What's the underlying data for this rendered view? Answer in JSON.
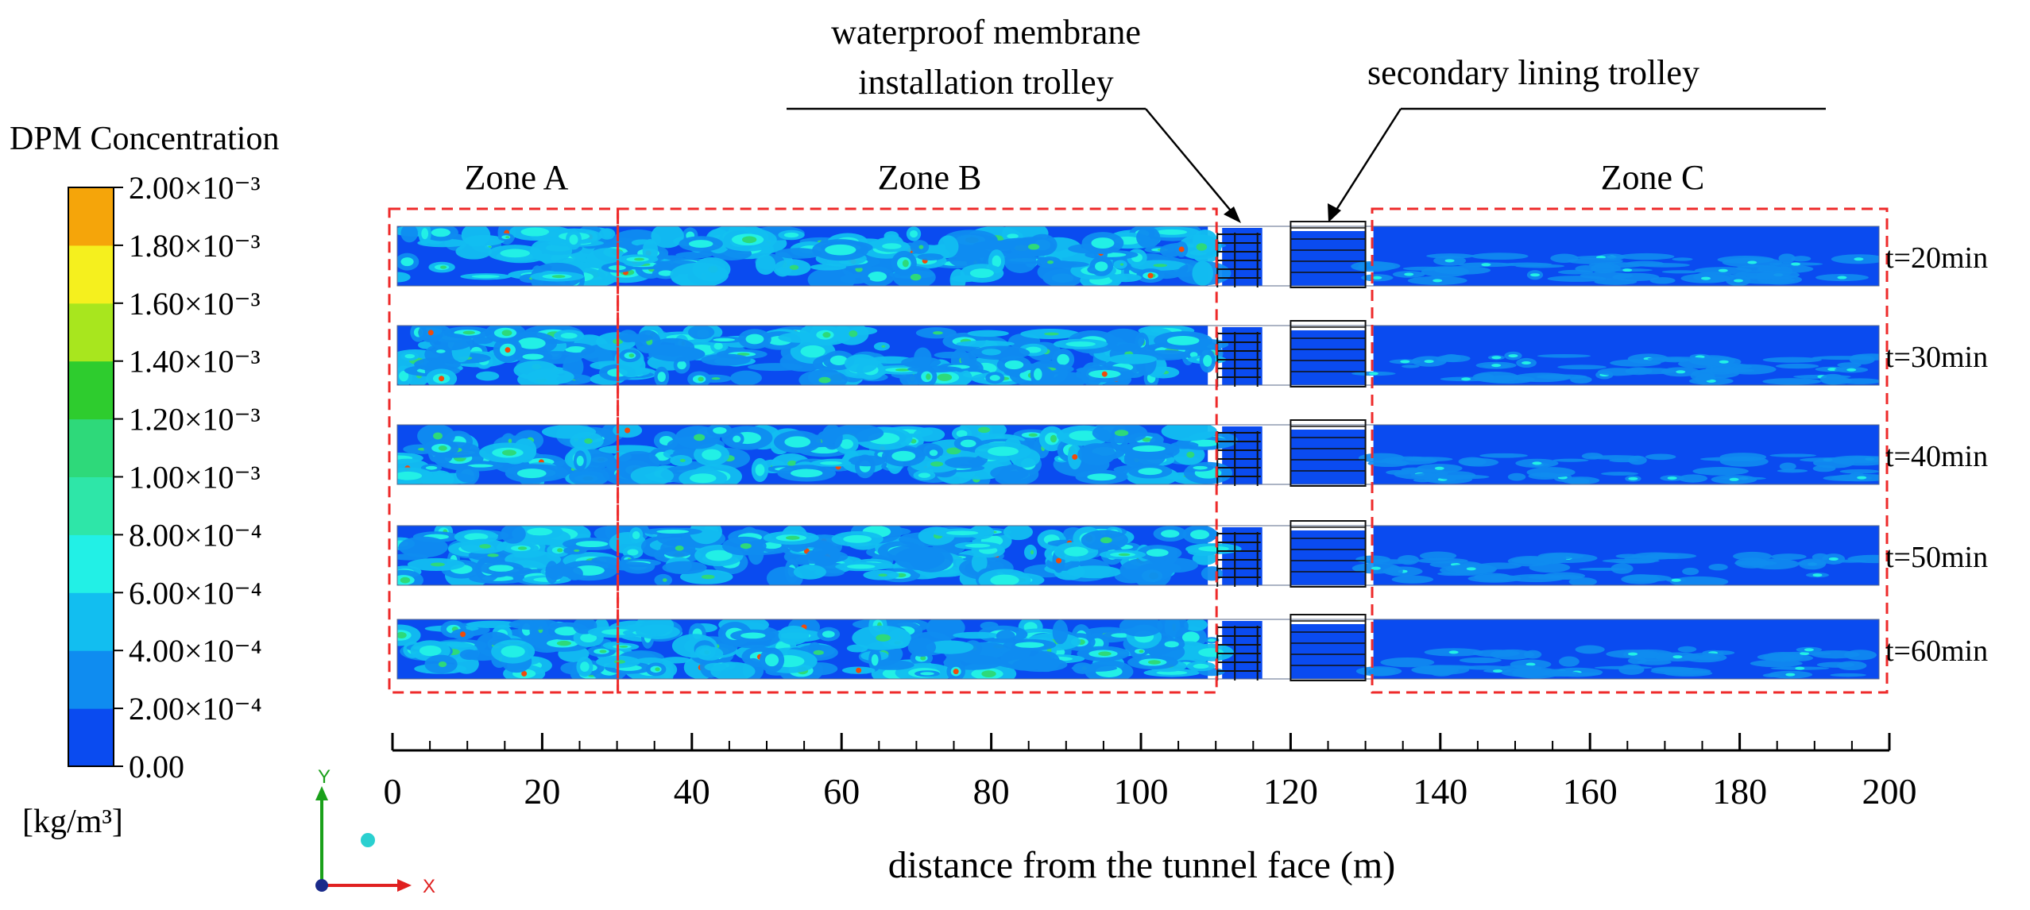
{
  "chart_data": {
    "type": "heatmap",
    "title": "",
    "xlabel": "distance from the tunnel face (m)",
    "ylabel": "",
    "xlim": [
      0,
      200
    ],
    "x_ticks": [
      0,
      20,
      40,
      60,
      80,
      100,
      120,
      140,
      160,
      180,
      200
    ],
    "x_tick_labels": [
      "0",
      "20",
      "40",
      "60",
      "80",
      "100",
      "120",
      "140",
      "160",
      "180",
      "200"
    ],
    "colorbar": {
      "title": "DPM Concentration",
      "unit": "[kg/m³]",
      "min": 0.0,
      "max": 0.002,
      "tick_labels": [
        "0.00",
        "2.00×10⁻⁴",
        "4.00×10⁻⁴",
        "6.00×10⁻⁴",
        "8.00×10⁻⁴",
        "1.00×10⁻³",
        "1.20×10⁻³",
        "1.40×10⁻³",
        "1.60×10⁻³",
        "1.80×10⁻³",
        "2.00×10⁻³"
      ],
      "colors": [
        "#0a4bf0",
        "#0f8cf0",
        "#12bef0",
        "#22f0e6",
        "#2ee6a8",
        "#2ed97a",
        "#2ecc2e",
        "#a8e61e",
        "#f5f01e",
        "#f5a50a",
        "#f04b0a"
      ]
    },
    "series": [
      {
        "name": "t=20min",
        "time_min": 20
      },
      {
        "name": "t=30min",
        "time_min": 30
      },
      {
        "name": "t=40min",
        "time_min": 40
      },
      {
        "name": "t=50min",
        "time_min": 50
      },
      {
        "name": "t=60min",
        "time_min": 60
      }
    ],
    "zones": [
      {
        "label": "Zone A",
        "x_start": 0,
        "x_end": 30
      },
      {
        "label": "Zone B",
        "x_start": 30,
        "x_end": 110
      },
      {
        "label": "Zone C",
        "x_start": 130,
        "x_end": 200
      }
    ],
    "equipment": [
      {
        "label_lines": [
          "waterproof membrane",
          "installation trolley"
        ],
        "x_start": 110,
        "x_end": 116
      },
      {
        "label_lines": [
          "secondary lining trolley"
        ],
        "x_start": 120,
        "x_end": 130
      }
    ],
    "axes_glyph": {
      "y_label": "Y",
      "x_label": "X"
    }
  }
}
